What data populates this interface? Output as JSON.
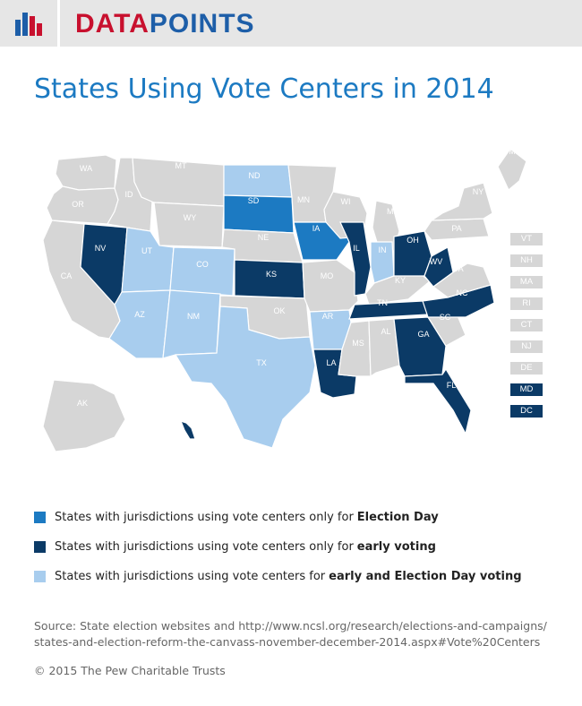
{
  "header": {
    "brand_part1": "DATA",
    "brand_part2": "POINTS"
  },
  "title": "States Using Vote Centers in 2014",
  "colors": {
    "none": "#d6d6d6",
    "election_day": "#1c7ac2",
    "early_voting": "#0b3a66",
    "both": "#a8cdee",
    "border": "#ffffff"
  },
  "map": {
    "states": [
      {
        "abbr": "WA",
        "category": "none"
      },
      {
        "abbr": "OR",
        "category": "none"
      },
      {
        "abbr": "CA",
        "category": "none"
      },
      {
        "abbr": "NV",
        "category": "early_voting"
      },
      {
        "abbr": "ID",
        "category": "none"
      },
      {
        "abbr": "MT",
        "category": "none"
      },
      {
        "abbr": "WY",
        "category": "none"
      },
      {
        "abbr": "UT",
        "category": "both"
      },
      {
        "abbr": "AZ",
        "category": "both"
      },
      {
        "abbr": "CO",
        "category": "both"
      },
      {
        "abbr": "NM",
        "category": "both"
      },
      {
        "abbr": "ND",
        "category": "both"
      },
      {
        "abbr": "SD",
        "category": "election_day"
      },
      {
        "abbr": "NE",
        "category": "none"
      },
      {
        "abbr": "KS",
        "category": "early_voting"
      },
      {
        "abbr": "OK",
        "category": "none"
      },
      {
        "abbr": "TX",
        "category": "both"
      },
      {
        "abbr": "MN",
        "category": "none"
      },
      {
        "abbr": "IA",
        "category": "election_day"
      },
      {
        "abbr": "MO",
        "category": "none"
      },
      {
        "abbr": "AR",
        "category": "both"
      },
      {
        "abbr": "LA",
        "category": "early_voting"
      },
      {
        "abbr": "WI",
        "category": "none"
      },
      {
        "abbr": "IL",
        "category": "early_voting"
      },
      {
        "abbr": "MS",
        "category": "none"
      },
      {
        "abbr": "MI",
        "category": "none"
      },
      {
        "abbr": "IN",
        "category": "both"
      },
      {
        "abbr": "KY",
        "category": "none"
      },
      {
        "abbr": "TN",
        "category": "early_voting"
      },
      {
        "abbr": "AL",
        "category": "none"
      },
      {
        "abbr": "OH",
        "category": "early_voting"
      },
      {
        "abbr": "WV",
        "category": "early_voting"
      },
      {
        "abbr": "GA",
        "category": "early_voting"
      },
      {
        "abbr": "FL",
        "category": "early_voting"
      },
      {
        "abbr": "SC",
        "category": "none"
      },
      {
        "abbr": "NC",
        "category": "early_voting"
      },
      {
        "abbr": "VA",
        "category": "none"
      },
      {
        "abbr": "PA",
        "category": "none"
      },
      {
        "abbr": "NY",
        "category": "none"
      },
      {
        "abbr": "ME",
        "category": "none"
      },
      {
        "abbr": "AK",
        "category": "none"
      },
      {
        "abbr": "HI",
        "category": "early_voting"
      }
    ],
    "small_states": [
      {
        "abbr": "VT",
        "category": "none"
      },
      {
        "abbr": "NH",
        "category": "none"
      },
      {
        "abbr": "MA",
        "category": "none"
      },
      {
        "abbr": "RI",
        "category": "none"
      },
      {
        "abbr": "CT",
        "category": "none"
      },
      {
        "abbr": "NJ",
        "category": "none"
      },
      {
        "abbr": "DE",
        "category": "none"
      },
      {
        "abbr": "MD",
        "category": "early_voting"
      },
      {
        "abbr": "DC",
        "category": "early_voting"
      }
    ]
  },
  "legend": [
    {
      "category": "election_day",
      "text": "States with jurisdictions using vote centers only for",
      "bold": "Election Day"
    },
    {
      "category": "early_voting",
      "text": "States with jurisdictions using vote centers only for",
      "bold": "early voting"
    },
    {
      "category": "both",
      "text": "States with jurisdictions using vote centers for",
      "bold": "early and Election Day voting"
    }
  ],
  "source": {
    "line1": "Source: State election websites and http://www.ncsl.org/research/elections-and-campaigns/",
    "line2": "states-and-election-reform-the-canvass-november-december-2014.aspx#Vote%20Centers"
  },
  "copyright": "© 2015 The Pew Charitable Trusts"
}
